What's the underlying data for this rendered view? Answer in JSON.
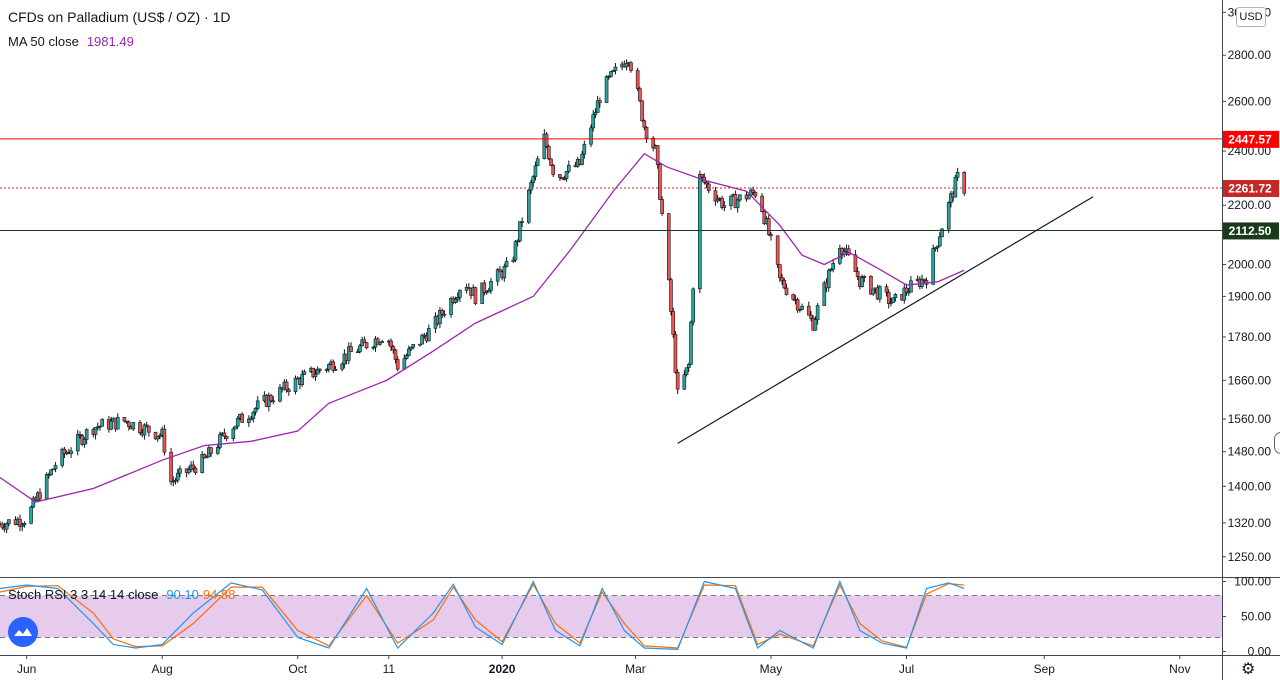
{
  "header": {
    "title": "CFDs on Palladium (US$ / OZ) · 1D",
    "ma_label": "MA 50 close",
    "ma_value": "1981.49",
    "currency": "USD"
  },
  "indicator": {
    "label": "Stoch RSI 3 3 14 14 close",
    "k_value": "90.10",
    "d_value": "94.88"
  },
  "colors": {
    "up": "#26a69a",
    "down": "#ef5350",
    "candle_border": "#131722",
    "ma": "#9c27b0",
    "resistance": "#ff0000",
    "support": "#1b3a1b",
    "price": "#c62828",
    "stoch_k": "#2196f3",
    "stoch_d": "#ff6d00",
    "stoch_band": "#e1bee7"
  },
  "chart_data": {
    "type": "candlestick",
    "price_axis": {
      "ticks": [
        "3000.00",
        "2800.00",
        "2600.00",
        "2400.00",
        "2200.00",
        "2000.00",
        "1900.00",
        "1780.00",
        "1660.00",
        "1560.00",
        "1480.00",
        "1400.00",
        "1320.00",
        "1250.00"
      ],
      "ylim": [
        1210,
        3060
      ],
      "scale": "log"
    },
    "x_axis": {
      "labels": [
        "Jun",
        "Aug",
        "Oct",
        "11",
        "2020",
        "Mar",
        "May",
        "Jul",
        "Sep",
        "Nov"
      ],
      "label_dates": [
        "2019-06-01",
        "2019-08-01",
        "2019-10-01",
        "2019-11-11",
        "2020-01-01",
        "2020-03-01",
        "2020-05-01",
        "2020-07-01",
        "2020-09-01",
        "2020-11-01"
      ],
      "range": [
        "2019-05-20",
        "2020-11-20"
      ]
    },
    "price_path": [
      [
        "2019-05-20",
        1318
      ],
      [
        "2019-06-01",
        1330
      ],
      [
        "2019-06-15",
        1460
      ],
      [
        "2019-07-01",
        1540
      ],
      [
        "2019-07-15",
        1555
      ],
      [
        "2019-08-01",
        1520
      ],
      [
        "2019-08-05",
        1410
      ],
      [
        "2019-08-20",
        1460
      ],
      [
        "2019-09-01",
        1540
      ],
      [
        "2019-09-15",
        1600
      ],
      [
        "2019-10-01",
        1660
      ],
      [
        "2019-10-15",
        1700
      ],
      [
        "2019-11-01",
        1760
      ],
      [
        "2019-11-10",
        1790
      ],
      [
        "2019-11-15",
        1700
      ],
      [
        "2019-12-01",
        1810
      ],
      [
        "2019-12-15",
        1950
      ],
      [
        "2019-12-20",
        1900
      ],
      [
        "2020-01-05",
        2000
      ],
      [
        "2020-01-10",
        2150
      ],
      [
        "2020-01-20",
        2450
      ],
      [
        "2020-01-25",
        2300
      ],
      [
        "2020-02-05",
        2350
      ],
      [
        "2020-02-15",
        2650
      ],
      [
        "2020-02-27",
        2800
      ],
      [
        "2020-03-05",
        2500
      ],
      [
        "2020-03-10",
        2400
      ],
      [
        "2020-03-20",
        1620
      ],
      [
        "2020-03-25",
        1700
      ],
      [
        "2020-03-30",
        2300
      ],
      [
        "2020-04-10",
        2200
      ],
      [
        "2020-04-25",
        2250
      ],
      [
        "2020-05-05",
        1950
      ],
      [
        "2020-05-20",
        1820
      ],
      [
        "2020-06-01",
        2070
      ],
      [
        "2020-06-10",
        1950
      ],
      [
        "2020-06-25",
        1880
      ],
      [
        "2020-07-01",
        1920
      ],
      [
        "2020-07-10",
        1960
      ],
      [
        "2020-07-20",
        2200
      ],
      [
        "2020-07-24",
        2300
      ],
      [
        "2020-07-27",
        2262
      ]
    ],
    "last_date": "2020-07-27",
    "ma50": [
      [
        "2019-05-20",
        1420
      ],
      [
        "2019-06-05",
        1365
      ],
      [
        "2019-07-01",
        1395
      ],
      [
        "2019-08-01",
        1460
      ],
      [
        "2019-08-20",
        1495
      ],
      [
        "2019-09-10",
        1505
      ],
      [
        "2019-10-01",
        1530
      ],
      [
        "2019-10-15",
        1600
      ],
      [
        "2019-11-10",
        1660
      ],
      [
        "2019-12-01",
        1740
      ],
      [
        "2019-12-20",
        1820
      ],
      [
        "2020-01-15",
        1900
      ],
      [
        "2020-02-01",
        2050
      ],
      [
        "2020-02-20",
        2250
      ],
      [
        "2020-03-05",
        2390
      ],
      [
        "2020-03-15",
        2340
      ],
      [
        "2020-04-01",
        2290
      ],
      [
        "2020-04-20",
        2250
      ],
      [
        "2020-05-05",
        2130
      ],
      [
        "2020-05-15",
        2030
      ],
      [
        "2020-05-25",
        2000
      ],
      [
        "2020-06-05",
        2040
      ],
      [
        "2020-06-20",
        1980
      ],
      [
        "2020-07-01",
        1935
      ],
      [
        "2020-07-15",
        1945
      ],
      [
        "2020-07-27",
        1981.49
      ]
    ],
    "resistance_level": {
      "value": 2447.57,
      "label": "2447.57"
    },
    "support_level": {
      "value": 2112.5,
      "label": "2112.50"
    },
    "last_price": {
      "value": 2261.72,
      "label": "2261.72"
    },
    "trendline": {
      "start": [
        "2020-03-20",
        1500
      ],
      "end": [
        "2020-09-23",
        2230
      ]
    },
    "stoch_axis": {
      "ticks": [
        "100.00",
        "50.00",
        "0.00"
      ],
      "ylim": [
        -5,
        105
      ],
      "upper_band": 80,
      "lower_band": 20
    },
    "stoch_rsi": {
      "k": [
        [
          "2019-05-20",
          90
        ],
        [
          "2019-06-01",
          95
        ],
        [
          "2019-06-15",
          90
        ],
        [
          "2019-07-01",
          40
        ],
        [
          "2019-07-10",
          10
        ],
        [
          "2019-07-20",
          5
        ],
        [
          "2019-08-01",
          10
        ],
        [
          "2019-08-15",
          55
        ],
        [
          "2019-09-01",
          98
        ],
        [
          "2019-09-15",
          88
        ],
        [
          "2019-10-01",
          20
        ],
        [
          "2019-10-15",
          5
        ],
        [
          "2019-11-01",
          90
        ],
        [
          "2019-11-15",
          5
        ],
        [
          "2019-12-01",
          55
        ],
        [
          "2019-12-10",
          96
        ],
        [
          "2019-12-20",
          35
        ],
        [
          "2020-01-01",
          10
        ],
        [
          "2020-01-15",
          100
        ],
        [
          "2020-01-25",
          30
        ],
        [
          "2020-02-05",
          8
        ],
        [
          "2020-02-15",
          90
        ],
        [
          "2020-02-25",
          30
        ],
        [
          "2020-03-05",
          5
        ],
        [
          "2020-03-20",
          3
        ],
        [
          "2020-04-01",
          100
        ],
        [
          "2020-04-15",
          90
        ],
        [
          "2020-04-25",
          5
        ],
        [
          "2020-05-05",
          30
        ],
        [
          "2020-05-20",
          5
        ],
        [
          "2020-06-01",
          100
        ],
        [
          "2020-06-10",
          30
        ],
        [
          "2020-06-20",
          12
        ],
        [
          "2020-07-01",
          5
        ],
        [
          "2020-07-10",
          90
        ],
        [
          "2020-07-20",
          98
        ],
        [
          "2020-07-27",
          90.1
        ]
      ],
      "d": [
        [
          "2019-05-20",
          85
        ],
        [
          "2019-06-01",
          93
        ],
        [
          "2019-06-15",
          94
        ],
        [
          "2019-07-01",
          55
        ],
        [
          "2019-07-10",
          18
        ],
        [
          "2019-07-20",
          7
        ],
        [
          "2019-08-01",
          8
        ],
        [
          "2019-08-15",
          40
        ],
        [
          "2019-09-01",
          92
        ],
        [
          "2019-09-15",
          92
        ],
        [
          "2019-10-01",
          30
        ],
        [
          "2019-10-15",
          8
        ],
        [
          "2019-11-01",
          80
        ],
        [
          "2019-11-15",
          12
        ],
        [
          "2019-12-01",
          45
        ],
        [
          "2019-12-10",
          92
        ],
        [
          "2019-12-20",
          45
        ],
        [
          "2020-01-01",
          14
        ],
        [
          "2020-01-15",
          96
        ],
        [
          "2020-01-25",
          40
        ],
        [
          "2020-02-05",
          12
        ],
        [
          "2020-02-15",
          85
        ],
        [
          "2020-02-25",
          40
        ],
        [
          "2020-03-05",
          8
        ],
        [
          "2020-03-20",
          5
        ],
        [
          "2020-04-01",
          95
        ],
        [
          "2020-04-15",
          94
        ],
        [
          "2020-04-25",
          10
        ],
        [
          "2020-05-05",
          25
        ],
        [
          "2020-05-20",
          8
        ],
        [
          "2020-06-01",
          95
        ],
        [
          "2020-06-10",
          40
        ],
        [
          "2020-06-20",
          15
        ],
        [
          "2020-07-01",
          6
        ],
        [
          "2020-07-10",
          82
        ],
        [
          "2020-07-20",
          97
        ],
        [
          "2020-07-27",
          94.88
        ]
      ]
    }
  }
}
